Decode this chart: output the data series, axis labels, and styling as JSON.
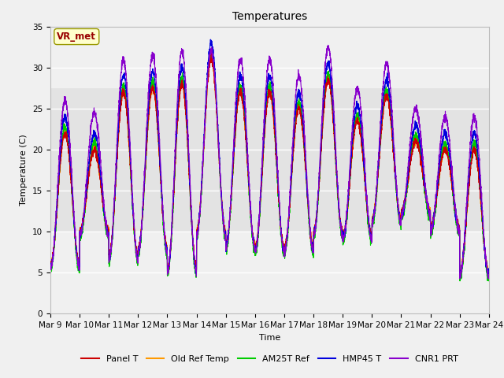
{
  "title": "Temperatures",
  "xlabel": "Time",
  "ylabel": "Temperature (C)",
  "ylim": [
    0,
    35
  ],
  "yticks": [
    0,
    5,
    10,
    15,
    20,
    25,
    30,
    35
  ],
  "x_tick_labels": [
    "Mar 9",
    "Mar 10",
    "Mar 11",
    "Mar 12",
    "Mar 13",
    "Mar 14",
    "Mar 15",
    "Mar 16",
    "Mar 17",
    "Mar 18",
    "Mar 19",
    "Mar 20",
    "Mar 21",
    "Mar 22",
    "Mar 23",
    "Mar 24"
  ],
  "series": [
    {
      "name": "Panel T",
      "color": "#cc0000",
      "lw": 0.8
    },
    {
      "name": "Old Ref Temp",
      "color": "#ff9900",
      "lw": 0.8
    },
    {
      "name": "AM25T Ref",
      "color": "#00cc00",
      "lw": 0.8
    },
    {
      "name": "HMP45 T",
      "color": "#0000dd",
      "lw": 0.8
    },
    {
      "name": "CNR1 PRT",
      "color": "#8800cc",
      "lw": 0.8
    }
  ],
  "fig_bg": "#f0f0f0",
  "plot_bg": "#f0f0f0",
  "label_text": "VR_met",
  "label_color": "#990000",
  "label_bg": "#ffffcc",
  "label_edge": "#999900",
  "grid_color": "#ffffff",
  "title_fontsize": 10,
  "axis_fontsize": 8,
  "tick_fontsize": 7.5,
  "legend_fontsize": 8,
  "day_peaks": [
    22.5,
    20.5,
    27.5,
    28.0,
    28.5,
    31.5,
    27.5,
    27.5,
    25.5,
    29.0,
    24.0,
    27.0,
    21.5,
    20.5,
    20.5
  ],
  "day_lows": [
    5.5,
    9.5,
    6.5,
    7.5,
    5.0,
    9.5,
    8.0,
    7.5,
    7.5,
    9.5,
    9.0,
    11.0,
    12.0,
    10.0,
    4.5
  ]
}
